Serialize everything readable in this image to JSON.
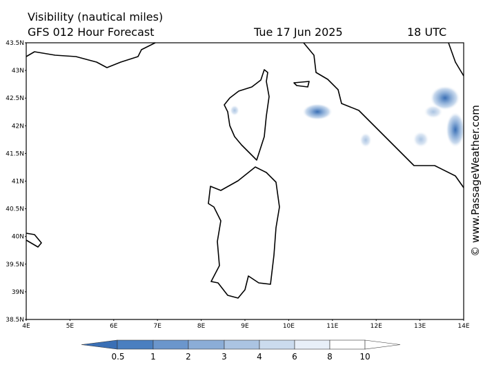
{
  "title": "Visibility (nautical miles)",
  "subtitle": "GFS 012 Hour Forecast",
  "date": "Tue 17 Jun 2025",
  "time": "18 UTC",
  "lat_labels": [
    "43.5N",
    "43N",
    "42.5N",
    "42N",
    "41.5N",
    "41N",
    "40.5N",
    "40N",
    "39.5N",
    "39N",
    "38.5N"
  ],
  "lon_labels": [
    "4E",
    "5E",
    "6E",
    "7E",
    "8E",
    "9E",
    "10E",
    "11E",
    "12E",
    "13E",
    "14E"
  ],
  "legend": {
    "labels": [
      "0.5",
      "1",
      "2",
      "3",
      "4",
      "6",
      "8",
      "10"
    ]
  },
  "credit": "© www.PassageWeather.com"
}
